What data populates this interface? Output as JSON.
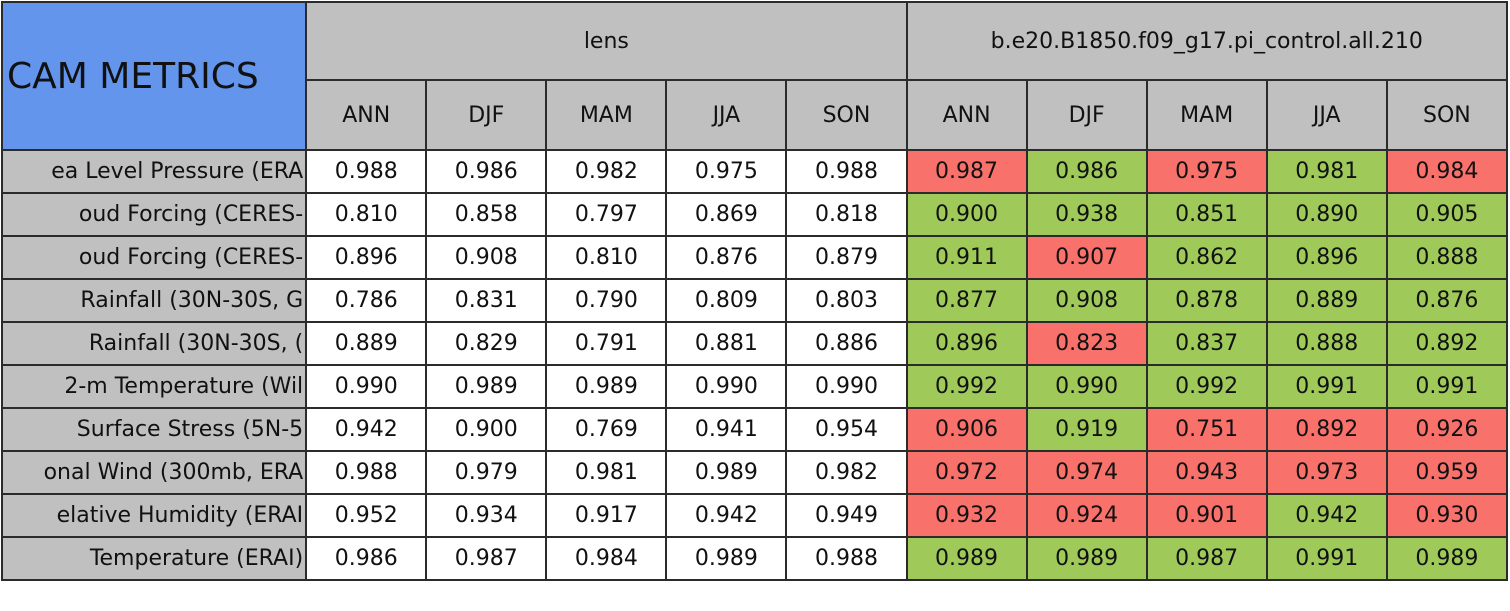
{
  "table": {
    "corner": "CAM METRICS",
    "groups": [
      "lens",
      "b.e20.B1850.f09_g17.pi_control.all.210"
    ],
    "seasons": [
      "ANN",
      "DJF",
      "MAM",
      "JJA",
      "SON"
    ],
    "colors": {
      "header": "#c0c0c0",
      "corner": "#6495ed",
      "better": "#9fca5a",
      "worse": "#f8716b",
      "plain": "#ffffff"
    },
    "rows": [
      {
        "metric": "ea Level Pressure (ERA",
        "lens": [
          "0.988",
          "0.986",
          "0.982",
          "0.975",
          "0.988"
        ],
        "control": [
          "0.987",
          "0.986",
          "0.975",
          "0.981",
          "0.984"
        ],
        "status": [
          "worse",
          "better",
          "worse",
          "better",
          "worse"
        ]
      },
      {
        "metric": "oud Forcing (CERES-",
        "lens": [
          "0.810",
          "0.858",
          "0.797",
          "0.869",
          "0.818"
        ],
        "control": [
          "0.900",
          "0.938",
          "0.851",
          "0.890",
          "0.905"
        ],
        "status": [
          "better",
          "better",
          "better",
          "better",
          "better"
        ]
      },
      {
        "metric": "oud Forcing (CERES-",
        "lens": [
          "0.896",
          "0.908",
          "0.810",
          "0.876",
          "0.879"
        ],
        "control": [
          "0.911",
          "0.907",
          "0.862",
          "0.896",
          "0.888"
        ],
        "status": [
          "better",
          "worse",
          "better",
          "better",
          "better"
        ]
      },
      {
        "metric": "Rainfall (30N-30S, G",
        "lens": [
          "0.786",
          "0.831",
          "0.790",
          "0.809",
          "0.803"
        ],
        "control": [
          "0.877",
          "0.908",
          "0.878",
          "0.889",
          "0.876"
        ],
        "status": [
          "better",
          "better",
          "better",
          "better",
          "better"
        ]
      },
      {
        "metric": "Rainfall (30N-30S, (",
        "lens": [
          "0.889",
          "0.829",
          "0.791",
          "0.881",
          "0.886"
        ],
        "control": [
          "0.896",
          "0.823",
          "0.837",
          "0.888",
          "0.892"
        ],
        "status": [
          "better",
          "worse",
          "better",
          "better",
          "better"
        ]
      },
      {
        "metric": "2-m Temperature (Wil",
        "lens": [
          "0.990",
          "0.989",
          "0.989",
          "0.990",
          "0.990"
        ],
        "control": [
          "0.992",
          "0.990",
          "0.992",
          "0.991",
          "0.991"
        ],
        "status": [
          "better",
          "better",
          "better",
          "better",
          "better"
        ]
      },
      {
        "metric": "Surface Stress (5N-5",
        "lens": [
          "0.942",
          "0.900",
          "0.769",
          "0.941",
          "0.954"
        ],
        "control": [
          "0.906",
          "0.919",
          "0.751",
          "0.892",
          "0.926"
        ],
        "status": [
          "worse",
          "better",
          "worse",
          "worse",
          "worse"
        ]
      },
      {
        "metric": "onal Wind (300mb, ERA",
        "lens": [
          "0.988",
          "0.979",
          "0.981",
          "0.989",
          "0.982"
        ],
        "control": [
          "0.972",
          "0.974",
          "0.943",
          "0.973",
          "0.959"
        ],
        "status": [
          "worse",
          "worse",
          "worse",
          "worse",
          "worse"
        ]
      },
      {
        "metric": "elative Humidity (ERAI",
        "lens": [
          "0.952",
          "0.934",
          "0.917",
          "0.942",
          "0.949"
        ],
        "control": [
          "0.932",
          "0.924",
          "0.901",
          "0.942",
          "0.930"
        ],
        "status": [
          "worse",
          "worse",
          "worse",
          "better",
          "worse"
        ]
      },
      {
        "metric": "Temperature (ERAI)",
        "lens": [
          "0.986",
          "0.987",
          "0.984",
          "0.989",
          "0.988"
        ],
        "control": [
          "0.989",
          "0.989",
          "0.987",
          "0.991",
          "0.989"
        ],
        "status": [
          "better",
          "better",
          "better",
          "better",
          "better"
        ]
      }
    ]
  }
}
